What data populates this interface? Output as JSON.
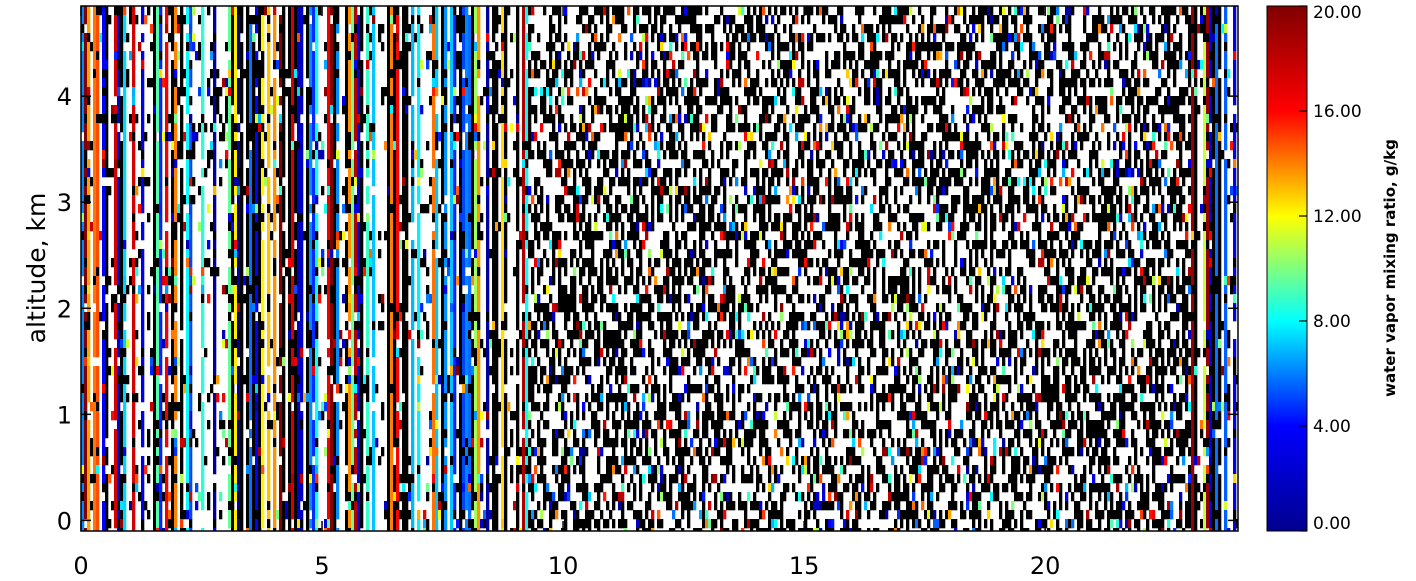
{
  "chart_data": {
    "type": "heatmap",
    "title": "",
    "xlabel": "",
    "ylabel": "altitude, km",
    "xlim": [
      0,
      24
    ],
    "ylim": [
      -0.1,
      4.85
    ],
    "x_ticks": [
      "0",
      "5",
      "10",
      "15",
      "20"
    ],
    "x_tick_values": [
      0,
      5,
      10,
      15,
      20
    ],
    "y_ticks": [
      "0",
      "1",
      "2",
      "3",
      "4"
    ],
    "y_tick_values": [
      0,
      1,
      2,
      3,
      4
    ],
    "colorbar": {
      "label": "water vapor mixing ratio, g/kg",
      "range": [
        0,
        20
      ],
      "ticks": [
        "0.00",
        "4.00",
        "8.00",
        "12.00",
        "16.00",
        "20.00"
      ],
      "tick_values": [
        0,
        4,
        8,
        12,
        16,
        20
      ],
      "colormap": [
        "#00008f",
        "#0000ff",
        "#00ffff",
        "#ffff00",
        "#ff0000",
        "#800000"
      ]
    },
    "description_values": {
      "column_regimes": [
        {
          "x_range": [
            0,
            9.3
          ],
          "pattern": "vertical banded columns (mostly white/black with colored stripes)"
        },
        {
          "x_range": [
            9.3,
            23
          ],
          "pattern": "dense noisy black/white speckle with sparse colored pixels"
        },
        {
          "x_range": [
            23,
            24
          ],
          "pattern": "vertical banded columns"
        }
      ]
    }
  }
}
